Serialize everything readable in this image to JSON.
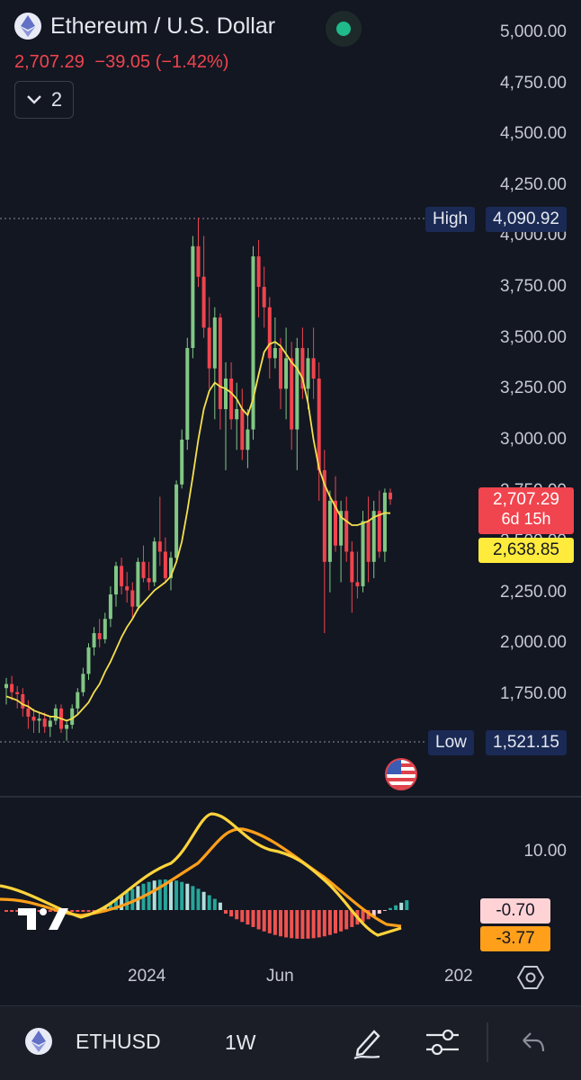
{
  "header": {
    "title": "Ethereum / U.S. Dollar",
    "last_price": "2,707.29",
    "change": "−39.05",
    "change_pct": "(−1.42%)",
    "indicator_count": "2",
    "icons": [
      "ethereum-icon",
      "chevron-down-icon",
      "market-status-dot"
    ]
  },
  "price_axis": {
    "labels": [
      "5,000.00",
      "4,750.00",
      "4,500.00",
      "4,250.00",
      "4,000.00",
      "3,750.00",
      "3,500.00",
      "3,250.00",
      "3,000.00",
      "2,750.00",
      "2,500.00",
      "2,250.00",
      "2,000.00",
      "1,750.00"
    ]
  },
  "markers": {
    "high_label": "High",
    "high_value": "4,090.92",
    "low_label": "Low",
    "low_value": "1,521.15",
    "current_price": "2,707.29",
    "countdown": "6d 15h",
    "ma_value": "2,638.85"
  },
  "indicator_panel": {
    "axis_label": "10.00",
    "macd_value": "-0.70",
    "signal_value": "-3.77"
  },
  "time_axis": {
    "labels": [
      "2024",
      "Jun",
      "202"
    ]
  },
  "bottom_bar": {
    "symbol": "ETHUSD",
    "interval": "1W",
    "icons": [
      "ethereum-icon",
      "pencil-icon",
      "sliders-icon",
      "undo-icon",
      "settings-hex-icon",
      "us-flag-icon"
    ]
  },
  "colors": {
    "background": "#131722",
    "up": "#81c784",
    "down": "#f0444e",
    "ma": "#ffeb3b",
    "signal": "#ff9800",
    "high_low_tag": "#1a2a55"
  },
  "chart_data": {
    "type": "candlestick",
    "ylim": [
      1500,
      5000
    ],
    "candles": [
      {
        "o": 1780,
        "h": 1830,
        "l": 1700,
        "c": 1800
      },
      {
        "o": 1800,
        "h": 1840,
        "l": 1720,
        "c": 1760
      },
      {
        "o": 1760,
        "h": 1790,
        "l": 1680,
        "c": 1750
      },
      {
        "o": 1750,
        "h": 1780,
        "l": 1640,
        "c": 1680
      },
      {
        "o": 1680,
        "h": 1720,
        "l": 1580,
        "c": 1640
      },
      {
        "o": 1640,
        "h": 1680,
        "l": 1560,
        "c": 1620
      },
      {
        "o": 1620,
        "h": 1660,
        "l": 1560,
        "c": 1630
      },
      {
        "o": 1630,
        "h": 1660,
        "l": 1560,
        "c": 1590
      },
      {
        "o": 1590,
        "h": 1640,
        "l": 1540,
        "c": 1620
      },
      {
        "o": 1620,
        "h": 1700,
        "l": 1600,
        "c": 1680
      },
      {
        "o": 1680,
        "h": 1700,
        "l": 1560,
        "c": 1580
      },
      {
        "o": 1580,
        "h": 1620,
        "l": 1521,
        "c": 1600
      },
      {
        "o": 1600,
        "h": 1700,
        "l": 1580,
        "c": 1680
      },
      {
        "o": 1680,
        "h": 1780,
        "l": 1650,
        "c": 1760
      },
      {
        "o": 1760,
        "h": 1880,
        "l": 1740,
        "c": 1850
      },
      {
        "o": 1850,
        "h": 2000,
        "l": 1820,
        "c": 1980
      },
      {
        "o": 1980,
        "h": 2080,
        "l": 1940,
        "c": 2050
      },
      {
        "o": 2050,
        "h": 2120,
        "l": 1980,
        "c": 2020
      },
      {
        "o": 2020,
        "h": 2150,
        "l": 2000,
        "c": 2120
      },
      {
        "o": 2120,
        "h": 2280,
        "l": 2080,
        "c": 2240
      },
      {
        "o": 2240,
        "h": 2400,
        "l": 2180,
        "c": 2380
      },
      {
        "o": 2380,
        "h": 2420,
        "l": 2240,
        "c": 2280
      },
      {
        "o": 2280,
        "h": 2350,
        "l": 2200,
        "c": 2260
      },
      {
        "o": 2260,
        "h": 2300,
        "l": 2120,
        "c": 2180
      },
      {
        "o": 2180,
        "h": 2420,
        "l": 2160,
        "c": 2400
      },
      {
        "o": 2400,
        "h": 2480,
        "l": 2300,
        "c": 2320
      },
      {
        "o": 2320,
        "h": 2400,
        "l": 2260,
        "c": 2300
      },
      {
        "o": 2300,
        "h": 2520,
        "l": 2280,
        "c": 2500
      },
      {
        "o": 2500,
        "h": 2720,
        "l": 2380,
        "c": 2450
      },
      {
        "o": 2450,
        "h": 2520,
        "l": 2300,
        "c": 2320
      },
      {
        "o": 2320,
        "h": 2450,
        "l": 2260,
        "c": 2420
      },
      {
        "o": 2420,
        "h": 2800,
        "l": 2400,
        "c": 2780
      },
      {
        "o": 2780,
        "h": 3050,
        "l": 2760,
        "c": 3000
      },
      {
        "o": 3000,
        "h": 3500,
        "l": 2950,
        "c": 3450
      },
      {
        "o": 3450,
        "h": 4000,
        "l": 3400,
        "c": 3950
      },
      {
        "o": 3950,
        "h": 4090,
        "l": 3750,
        "c": 3800
      },
      {
        "o": 3800,
        "h": 4000,
        "l": 3500,
        "c": 3550
      },
      {
        "o": 3550,
        "h": 3700,
        "l": 3250,
        "c": 3350
      },
      {
        "o": 3350,
        "h": 3650,
        "l": 3100,
        "c": 3600
      },
      {
        "o": 3600,
        "h": 3620,
        "l": 3050,
        "c": 3150
      },
      {
        "o": 3150,
        "h": 3380,
        "l": 2850,
        "c": 3300
      },
      {
        "o": 3300,
        "h": 3380,
        "l": 3050,
        "c": 3100
      },
      {
        "o": 3100,
        "h": 3280,
        "l": 2950,
        "c": 3150
      },
      {
        "o": 3150,
        "h": 3250,
        "l": 2900,
        "c": 2950
      },
      {
        "o": 2950,
        "h": 3150,
        "l": 2860,
        "c": 3050
      },
      {
        "o": 3050,
        "h": 3950,
        "l": 3000,
        "c": 3900
      },
      {
        "o": 3900,
        "h": 3980,
        "l": 3600,
        "c": 3750
      },
      {
        "o": 3750,
        "h": 3850,
        "l": 3550,
        "c": 3650
      },
      {
        "o": 3650,
        "h": 3700,
        "l": 3300,
        "c": 3400
      },
      {
        "o": 3400,
        "h": 3600,
        "l": 3350,
        "c": 3450
      },
      {
        "o": 3450,
        "h": 3500,
        "l": 3150,
        "c": 3250
      },
      {
        "o": 3250,
        "h": 3550,
        "l": 3100,
        "c": 3400
      },
      {
        "o": 3400,
        "h": 3480,
        "l": 2950,
        "c": 3050
      },
      {
        "o": 3050,
        "h": 3500,
        "l": 2850,
        "c": 3450
      },
      {
        "o": 3450,
        "h": 3550,
        "l": 3200,
        "c": 3250
      },
      {
        "o": 3250,
        "h": 3450,
        "l": 3150,
        "c": 3400
      },
      {
        "o": 3400,
        "h": 3550,
        "l": 3200,
        "c": 3300
      },
      {
        "o": 3300,
        "h": 3380,
        "l": 2700,
        "c": 2850
      },
      {
        "o": 2850,
        "h": 2950,
        "l": 2050,
        "c": 2400
      },
      {
        "o": 2400,
        "h": 2750,
        "l": 2250,
        "c": 2700
      },
      {
        "o": 2700,
        "h": 2820,
        "l": 2450,
        "c": 2480
      },
      {
        "o": 2480,
        "h": 2700,
        "l": 2300,
        "c": 2650
      },
      {
        "o": 2650,
        "h": 2720,
        "l": 2400,
        "c": 2450
      },
      {
        "o": 2450,
        "h": 2500,
        "l": 2150,
        "c": 2300
      },
      {
        "o": 2300,
        "h": 2450,
        "l": 2220,
        "c": 2280
      },
      {
        "o": 2280,
        "h": 2650,
        "l": 2250,
        "c": 2600
      },
      {
        "o": 2600,
        "h": 2720,
        "l": 2300,
        "c": 2400
      },
      {
        "o": 2400,
        "h": 2700,
        "l": 2320,
        "c": 2650
      },
      {
        "o": 2650,
        "h": 2750,
        "l": 2420,
        "c": 2450
      },
      {
        "o": 2450,
        "h": 2760,
        "l": 2400,
        "c": 2740
      },
      {
        "o": 2740,
        "h": 2760,
        "l": 2680,
        "c": 2707
      }
    ],
    "ma_line": [
      1740,
      1730,
      1720,
      1700,
      1690,
      1670,
      1660,
      1650,
      1640,
      1640,
      1630,
      1620,
      1630,
      1650,
      1680,
      1710,
      1760,
      1800,
      1860,
      1910,
      1970,
      2030,
      2080,
      2120,
      2170,
      2200,
      2230,
      2260,
      2280,
      2300,
      2330,
      2400,
      2500,
      2650,
      2820,
      3000,
      3150,
      3240,
      3280,
      3260,
      3250,
      3230,
      3200,
      3150,
      3120,
      3200,
      3320,
      3430,
      3470,
      3480,
      3460,
      3420,
      3380,
      3350,
      3300,
      3180,
      3000,
      2860,
      2780,
      2720,
      2670,
      2620,
      2600,
      2580,
      2580,
      2590,
      2600,
      2620,
      2630,
      2640,
      2638.85
    ]
  }
}
